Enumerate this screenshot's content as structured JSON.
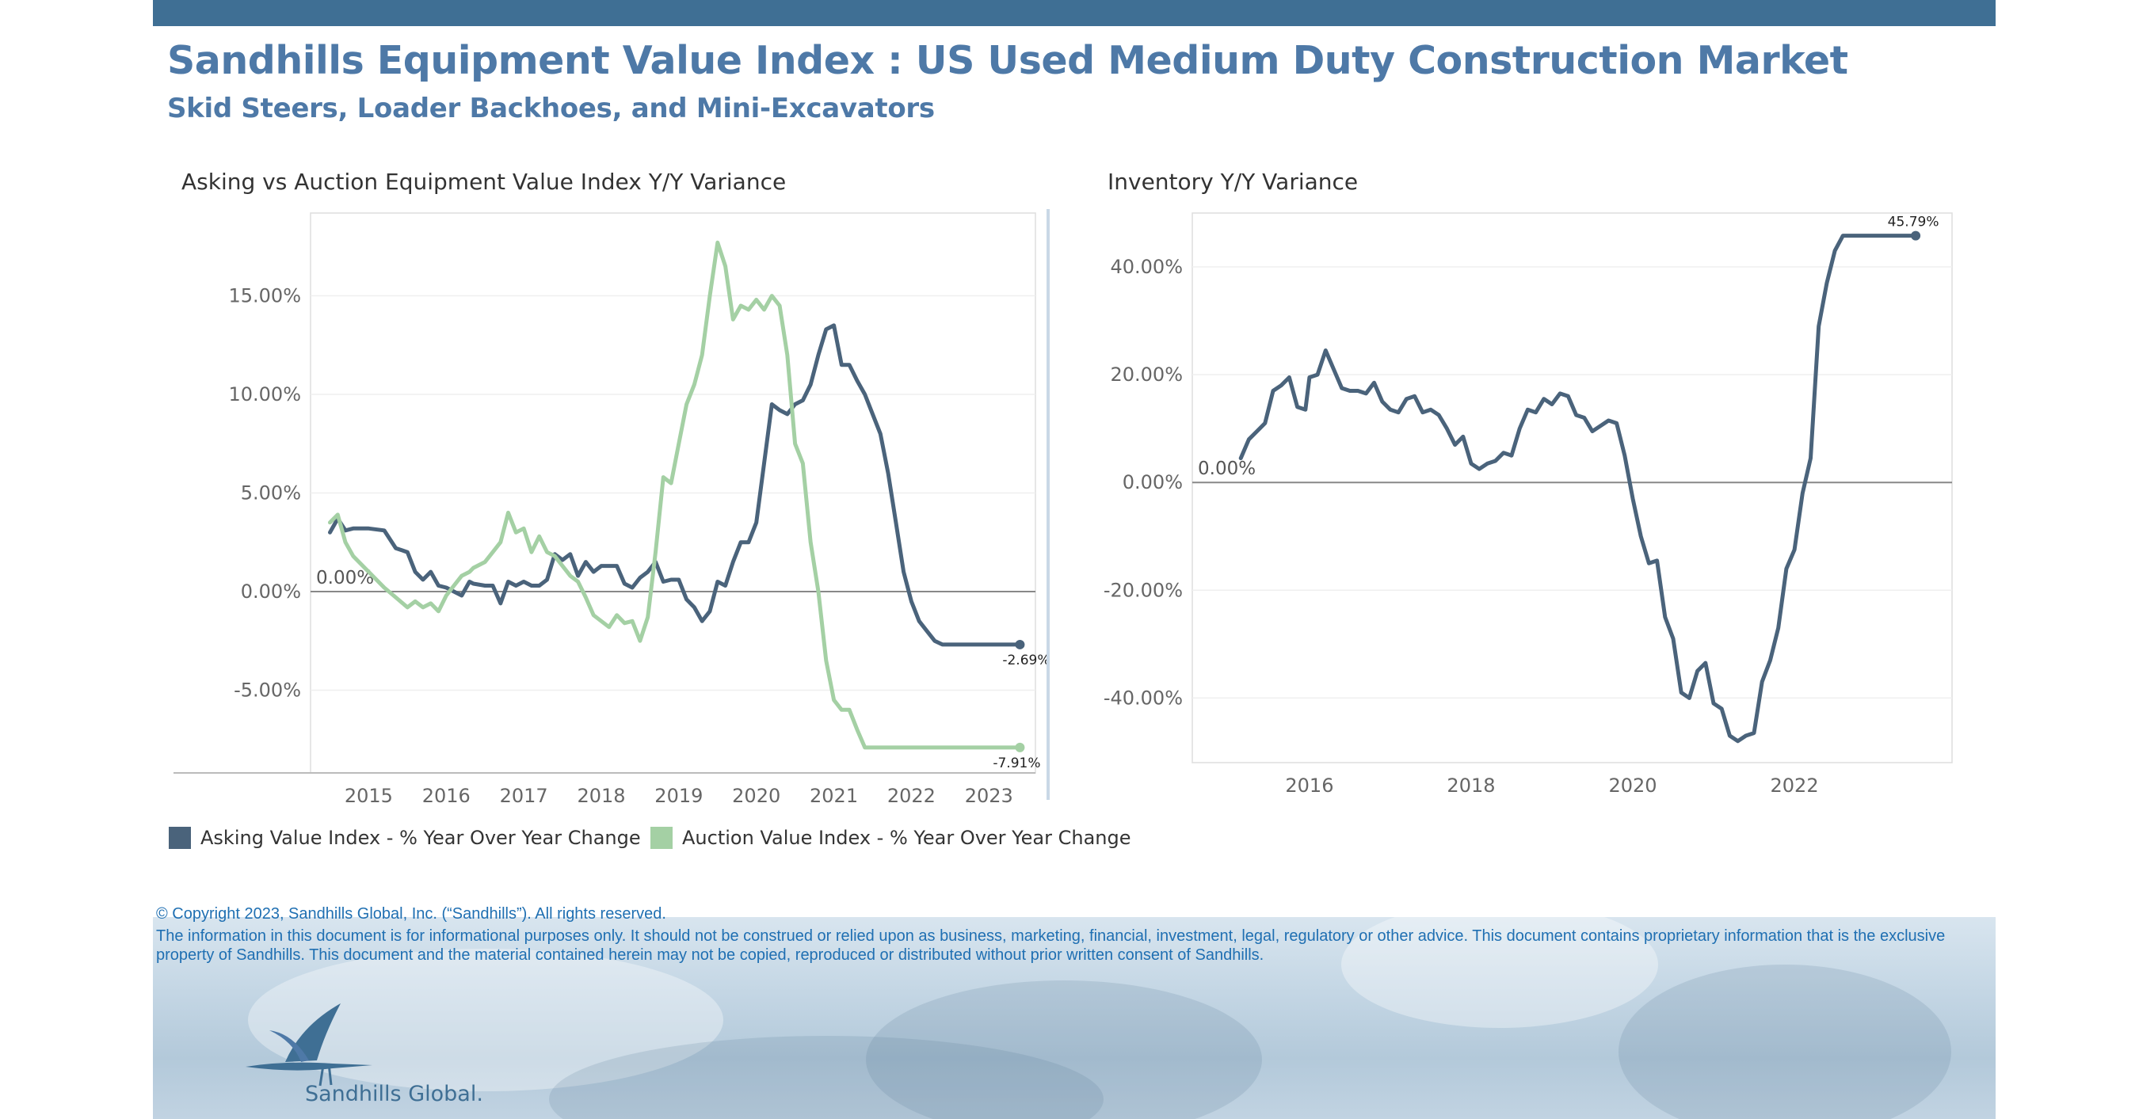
{
  "header": {
    "title": "Sandhills Equipment Value Index : US Used Medium Duty Construction Market",
    "subtitle": "Skid Steers, Loader Backhoes, and Mini-Excavators"
  },
  "colors": {
    "asking": "#4a637b",
    "auction": "#a4d0a4",
    "accent": "#4e79a7",
    "topbar": "#3f6f94",
    "footer_text": "#1f6fb2"
  },
  "chart_data": [
    {
      "type": "line",
      "title": "Asking vs Auction Equipment Value Index Y/Y Variance",
      "xlabel": "",
      "ylabel": "",
      "xlim": [
        2014.25,
        2023.6
      ],
      "ylim": [
        -9.2,
        19.2
      ],
      "x_ticks": [
        "2015",
        "2016",
        "2017",
        "2018",
        "2019",
        "2020",
        "2021",
        "2022",
        "2023"
      ],
      "y_ticks": [
        "-5.00%",
        "0.00%",
        "5.00%",
        "10.00%",
        "15.00%"
      ],
      "zero_label": "0.00%",
      "legend_position": "bottom",
      "series": [
        {
          "name": "Asking Value Index - % Year Over Year Change",
          "end_label": "-2.69%",
          "x": [
            2014.5,
            2014.6,
            2014.7,
            2014.8,
            2015,
            2015.2,
            2015.35,
            2015.5,
            2015.6,
            2015.7,
            2015.8,
            2015.9,
            2016,
            2016.1,
            2016.2,
            2016.3,
            2016.35,
            2016.5,
            2016.6,
            2016.7,
            2016.8,
            2016.9,
            2017,
            2017.1,
            2017.2,
            2017.3,
            2017.4,
            2017.5,
            2017.6,
            2017.7,
            2017.8,
            2017.9,
            2018,
            2018.1,
            2018.2,
            2018.3,
            2018.4,
            2018.5,
            2018.6,
            2018.7,
            2018.8,
            2018.9,
            2019,
            2019.1,
            2019.2,
            2019.3,
            2019.4,
            2019.5,
            2019.6,
            2019.7,
            2019.8,
            2019.9,
            2020,
            2020.1,
            2020.2,
            2020.3,
            2020.4,
            2020.5,
            2020.6,
            2020.7,
            2020.8,
            2020.9,
            2021,
            2021.1,
            2021.2,
            2021.3,
            2021.4,
            2021.5,
            2021.6,
            2021.7,
            2021.8,
            2021.9,
            2022,
            2022.1,
            2022.2,
            2022.3,
            2022.4,
            2022.5,
            2022.6,
            2022.7,
            2022.8,
            2022.9,
            2023,
            2023.1,
            2023.2,
            2023.3,
            2023.4
          ],
          "y": [
            3.0,
            3.7,
            3.1,
            3.2,
            3.2,
            3.1,
            2.2,
            2.0,
            1.0,
            0.6,
            1.0,
            0.3,
            0.2,
            0.0,
            -0.2,
            0.5,
            0.4,
            0.3,
            0.3,
            -0.6,
            0.5,
            0.3,
            0.5,
            0.3,
            0.3,
            0.6,
            1.9,
            1.6,
            1.9,
            0.8,
            1.5,
            1.0,
            1.3,
            1.3,
            1.3,
            0.4,
            0.2,
            0.7,
            1.0,
            1.5,
            0.5,
            0.6,
            0.6,
            -0.4,
            -0.8,
            -1.5,
            -1.0,
            0.5,
            0.3,
            1.5,
            2.5,
            2.5,
            3.5,
            6.5,
            9.5,
            9.2,
            9.0,
            9.5,
            9.7,
            10.5,
            12.0,
            13.3,
            13.5,
            11.5,
            11.5,
            10.7,
            10.0,
            9.0,
            8.0,
            6.0,
            3.5,
            1.0,
            -0.5,
            -1.5,
            -2.0,
            -2.5,
            -2.69,
            -2.69,
            -2.69,
            -2.69,
            -2.69,
            -2.69,
            -2.69,
            -2.69,
            -2.69,
            -2.69,
            -2.69
          ]
        },
        {
          "name": "Auction Value Index - % Year Over Year Change",
          "end_label": "-7.91%",
          "x": [
            2014.5,
            2014.6,
            2014.7,
            2014.8,
            2015,
            2015.2,
            2015.35,
            2015.5,
            2015.6,
            2015.7,
            2015.8,
            2015.9,
            2016,
            2016.1,
            2016.2,
            2016.3,
            2016.35,
            2016.5,
            2016.6,
            2016.7,
            2016.8,
            2016.9,
            2017,
            2017.1,
            2017.2,
            2017.3,
            2017.4,
            2017.5,
            2017.6,
            2017.7,
            2017.8,
            2017.9,
            2018,
            2018.1,
            2018.2,
            2018.3,
            2018.4,
            2018.5,
            2018.6,
            2018.7,
            2018.8,
            2018.9,
            2019,
            2019.1,
            2019.2,
            2019.3,
            2019.4,
            2019.5,
            2019.6,
            2019.7,
            2019.8,
            2019.9,
            2020,
            2020.1,
            2020.2,
            2020.3,
            2020.4,
            2020.5,
            2020.6,
            2020.7,
            2020.8,
            2020.9,
            2021,
            2021.1,
            2021.2,
            2021.3,
            2021.4,
            2021.5,
            2021.6,
            2021.7,
            2021.8,
            2021.9,
            2022,
            2022.1,
            2022.2,
            2022.3,
            2022.4,
            2022.5,
            2022.6,
            2022.7,
            2022.8,
            2022.9,
            2023,
            2023.1,
            2023.2,
            2023.3,
            2023.4
          ],
          "y": [
            3.5,
            3.9,
            2.5,
            1.8,
            1.0,
            0.2,
            -0.3,
            -0.8,
            -0.5,
            -0.8,
            -0.6,
            -1.0,
            -0.2,
            0.3,
            0.8,
            1.0,
            1.2,
            1.5,
            2.0,
            2.5,
            4.0,
            3.0,
            3.2,
            2.0,
            2.8,
            2.0,
            1.8,
            1.3,
            0.8,
            0.5,
            -0.3,
            -1.2,
            -1.5,
            -1.8,
            -1.2,
            -1.6,
            -1.5,
            -2.5,
            -1.3,
            2.0,
            5.8,
            5.5,
            7.5,
            9.5,
            10.5,
            12.0,
            15.0,
            17.7,
            16.5,
            13.8,
            14.5,
            14.3,
            14.8,
            14.3,
            15.0,
            14.5,
            12.0,
            7.5,
            6.5,
            2.5,
            0.0,
            -3.5,
            -5.5,
            -6.0,
            -6.0,
            -7.0,
            -7.91,
            -7.91,
            -7.91,
            -7.91,
            -7.91,
            -7.91,
            -7.91,
            -7.91,
            -7.91,
            -7.91,
            -7.91,
            -7.91,
            -7.91,
            -7.91,
            -7.91,
            -7.91,
            -7.91,
            -7.91,
            -7.91,
            -7.91,
            -7.91
          ]
        }
      ]
    },
    {
      "type": "line",
      "title": "Inventory Y/Y Variance",
      "xlabel": "",
      "ylabel": "",
      "xlim": [
        2014.55,
        2023.95
      ],
      "ylim": [
        -52,
        50
      ],
      "x_ticks": [
        "2016",
        "2018",
        "2020",
        "2022"
      ],
      "y_ticks": [
        "-40.00%",
        "-20.00%",
        "0.00%",
        "20.00%",
        "40.00%"
      ],
      "zero_label": "0.00%",
      "series": [
        {
          "name": "Inventory Y/Y Variance",
          "end_label": "45.79%",
          "x": [
            2015.15,
            2015.25,
            2015.35,
            2015.45,
            2015.55,
            2015.65,
            2015.75,
            2015.85,
            2015.95,
            2016.0,
            2016.1,
            2016.2,
            2016.3,
            2016.4,
            2016.5,
            2016.6,
            2016.7,
            2016.8,
            2016.9,
            2017.0,
            2017.1,
            2017.2,
            2017.3,
            2017.4,
            2017.5,
            2017.6,
            2017.7,
            2017.8,
            2017.9,
            2018.0,
            2018.1,
            2018.2,
            2018.3,
            2018.4,
            2018.5,
            2018.6,
            2018.7,
            2018.8,
            2018.9,
            2019.0,
            2019.1,
            2019.2,
            2019.3,
            2019.4,
            2019.5,
            2019.6,
            2019.7,
            2019.8,
            2019.9,
            2020.0,
            2020.1,
            2020.2,
            2020.3,
            2020.4,
            2020.5,
            2020.6,
            2020.7,
            2020.8,
            2020.9,
            2021.0,
            2021.1,
            2021.2,
            2021.3,
            2021.4,
            2021.5,
            2021.6,
            2021.7,
            2021.8,
            2021.9,
            2022.0,
            2022.1,
            2022.2,
            2022.3,
            2022.4,
            2022.5,
            2022.6,
            2022.7,
            2022.8,
            2022.9,
            2023.0,
            2023.1,
            2023.2,
            2023.3,
            2023.4,
            2023.5
          ],
          "y": [
            4.5,
            8.0,
            9.5,
            11.0,
            17.0,
            18.0,
            19.5,
            14.0,
            13.5,
            19.5,
            20.0,
            24.5,
            21.0,
            17.5,
            17.0,
            17.0,
            16.5,
            18.5,
            15.0,
            13.5,
            13.0,
            15.5,
            16.0,
            13.0,
            13.5,
            12.5,
            10.0,
            7.0,
            8.5,
            3.5,
            2.5,
            3.5,
            4.0,
            5.5,
            5.0,
            10.0,
            13.5,
            13.0,
            15.5,
            14.5,
            16.5,
            16.0,
            12.5,
            12.0,
            9.5,
            10.5,
            11.5,
            11.0,
            5.0,
            -3.0,
            -10.0,
            -15.0,
            -14.5,
            -25.0,
            -29.0,
            -39.0,
            -40.0,
            -35.0,
            -33.5,
            -41.0,
            -42.0,
            -47.0,
            -48.0,
            -47.0,
            -46.5,
            -37.0,
            -33.0,
            -27.0,
            -16.0,
            -12.5,
            -2.0,
            4.5,
            29.0,
            37.0,
            43.0,
            45.79,
            45.79,
            45.79,
            45.79,
            45.79,
            45.79,
            45.79,
            45.79,
            45.79,
            45.79
          ]
        }
      ]
    }
  ],
  "footer": {
    "copyright": "© Copyright 2023, Sandhills Global, Inc. (“Sandhills”). All rights reserved.",
    "disclaimer": "The information in this document is for informational purposes only.  It should not be construed or relied upon as business, marketing, financial, investment, legal, regulatory or other advice. This document contains proprietary information that is the exclusive property of Sandhills. This document and the material contained herein may not be copied, reproduced or distributed without prior written consent of Sandhills.",
    "brand": "Sandhills Global."
  }
}
